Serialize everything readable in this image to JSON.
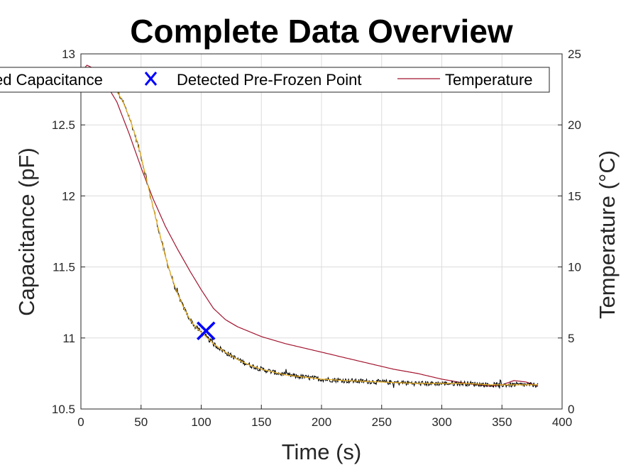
{
  "chart_data": {
    "type": "line",
    "title": "Complete Data Overview",
    "xlabel": "Time (s)",
    "ylabel_left": "Capacitance (pF)",
    "ylabel_right": "Temperature (°C)",
    "xlim": [
      0,
      400
    ],
    "ylim_left": [
      10.5,
      13
    ],
    "ylim_right": [
      0,
      25
    ],
    "x_ticks": [
      "0",
      "50",
      "100",
      "150",
      "200",
      "250",
      "300",
      "350",
      "400"
    ],
    "y_left_ticks": [
      "10.5",
      "11",
      "11.5",
      "12",
      "12.5",
      "13"
    ],
    "y_right_ticks": [
      "0",
      "5",
      "10",
      "15",
      "20",
      "25"
    ],
    "grid": true,
    "legend": {
      "position": "top",
      "entries": [
        "ed Capacitance",
        "Detected Pre-Frozen Point",
        "Temperature"
      ]
    },
    "colors": {
      "raw_capacitance": "#000000",
      "smoothed_capacitance": "#EDB120",
      "pre_frozen_marker": "#0000FF",
      "temperature": "#A2142F"
    },
    "series": [
      {
        "name": "Temperature",
        "axis": "right",
        "x": [
          0,
          5,
          10,
          20,
          30,
          40,
          50,
          60,
          70,
          80,
          90,
          100,
          110,
          120,
          130,
          150,
          170,
          200,
          230,
          260,
          280,
          300,
          320,
          340,
          350,
          360,
          370,
          380
        ],
        "values": [
          23.7,
          24.2,
          24.0,
          23.0,
          21.6,
          19.4,
          17.0,
          14.8,
          12.9,
          11.3,
          9.8,
          8.4,
          7.1,
          6.3,
          5.8,
          5.1,
          4.6,
          4.0,
          3.4,
          2.8,
          2.5,
          2.1,
          1.8,
          1.6,
          1.7,
          2.0,
          1.9,
          1.6
        ]
      },
      {
        "name": "Capacitance",
        "axis": "left",
        "x": [
          25,
          30,
          35,
          40,
          45,
          50,
          55,
          60,
          65,
          70,
          75,
          80,
          85,
          90,
          95,
          100,
          105,
          110,
          120,
          130,
          140,
          150,
          160,
          170,
          180,
          200,
          220,
          250,
          280,
          300,
          320,
          340,
          360,
          380
        ],
        "values": [
          12.8,
          12.74,
          12.66,
          12.56,
          12.43,
          12.28,
          12.1,
          11.92,
          11.75,
          11.58,
          11.44,
          11.32,
          11.22,
          11.14,
          11.08,
          11.04,
          11.0,
          10.96,
          10.9,
          10.85,
          10.81,
          10.78,
          10.76,
          10.74,
          10.73,
          10.71,
          10.7,
          10.69,
          10.68,
          10.68,
          10.68,
          10.67,
          10.67,
          10.67
        ]
      },
      {
        "name": "Detected Pre-Frozen Point",
        "axis": "left",
        "x": [
          104
        ],
        "values": [
          11.05
        ]
      }
    ]
  }
}
